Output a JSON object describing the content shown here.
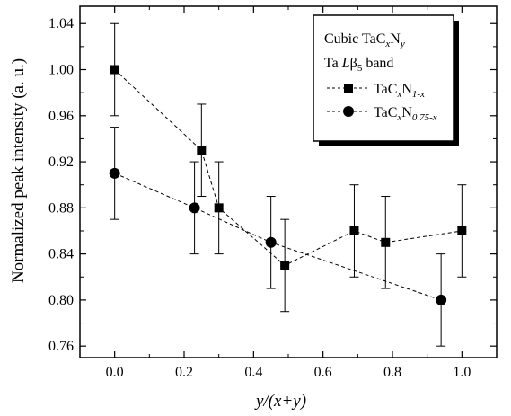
{
  "chart_data": {
    "type": "line",
    "xlabel": "y/(x+y)",
    "ylabel": "Normalized peak intensity (a. u.)",
    "xlim": [
      -0.1,
      1.1
    ],
    "ylim": [
      0.75,
      1.055
    ],
    "x_ticks": [
      0.0,
      0.2,
      0.4,
      0.6,
      0.8,
      1.0
    ],
    "y_ticks": [
      0.76,
      0.8,
      0.84,
      0.88,
      0.92,
      0.96,
      1.0,
      1.04
    ],
    "x_tick_labels": [
      "0.0",
      "0.2",
      "0.4",
      "0.6",
      "0.8",
      "1.0"
    ],
    "y_tick_labels": [
      "0.76",
      "0.80",
      "0.84",
      "0.88",
      "0.92",
      "0.96",
      "1.00",
      "1.04"
    ],
    "legend": {
      "placement": "top-right",
      "title_line1": "Cubic TaC",
      "title_line1_sub1": "x",
      "title_line1_mid": "N",
      "title_line1_sub2": "y",
      "title_line2_pre": "Ta ",
      "title_line2_italic": "L",
      "title_line2_beta": "β",
      "title_line2_sub": "5",
      "title_line2_post": " band"
    },
    "series": [
      {
        "name": "TaCxN1-x",
        "label_base": "TaC",
        "label_sub1": "x",
        "label_mid": "N",
        "label_sub2": "1-x",
        "marker": "square",
        "x": [
          0.0,
          0.25,
          0.3,
          0.49,
          0.69,
          0.78,
          1.0
        ],
        "y": [
          1.0,
          0.93,
          0.88,
          0.83,
          0.86,
          0.85,
          0.86
        ],
        "err": [
          0.04,
          0.04,
          0.04,
          0.04,
          0.04,
          0.04,
          0.04
        ]
      },
      {
        "name": "TaCxN0.75-x",
        "label_base": "TaC",
        "label_sub1": "x",
        "label_mid": "N",
        "label_sub2": "0.75-x",
        "marker": "circle",
        "x": [
          0.0,
          0.23,
          0.45,
          0.94
        ],
        "y": [
          0.91,
          0.88,
          0.85,
          0.8
        ],
        "err": [
          0.04,
          0.04,
          0.04,
          0.04
        ]
      }
    ],
    "grid": false
  }
}
